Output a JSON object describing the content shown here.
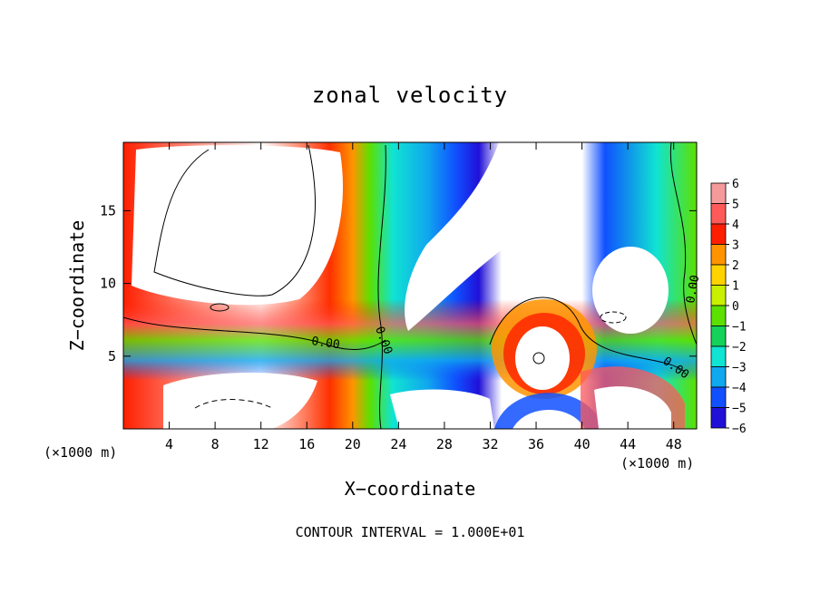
{
  "chart_data": {
    "type": "heatmap",
    "title": "zonal velocity",
    "xlabel": "X−coordinate",
    "ylabel": "Z−coordinate",
    "x_unit_left": "(×1000 m)",
    "x_unit_right": "(×1000 m)",
    "footer": "CONTOUR INTERVAL = 1.000E+01",
    "xlim": [
      0,
      50
    ],
    "ylim": [
      0,
      19.7
    ],
    "x_ticks": [
      4,
      8,
      12,
      16,
      20,
      24,
      28,
      32,
      36,
      40,
      44,
      48
    ],
    "x_tick_labels": [
      "4",
      "8",
      "12",
      "16",
      "20",
      "24",
      "28",
      "32",
      "36",
      "40",
      "44",
      "48"
    ],
    "y_ticks": [
      5,
      10,
      15
    ],
    "y_tick_labels": [
      "5",
      "10",
      "15"
    ],
    "colorbar": {
      "range": [
        -6,
        6
      ],
      "levels": [
        6,
        5,
        4,
        3,
        2,
        1,
        0,
        -1,
        -2,
        -3,
        -4,
        -5,
        -6
      ],
      "labels": [
        "6",
        "5",
        "4",
        "3",
        "2",
        "1",
        "0",
        "−1",
        "−2",
        "−3",
        "−4",
        "−5",
        "−6"
      ],
      "colors": [
        "#f49a9a",
        "#ff5a5a",
        "#ff1f00",
        "#ff9400",
        "#ffd200",
        "#c8f000",
        "#5ce000",
        "#14d25a",
        "#10e4d2",
        "#10a8ee",
        "#1050ff",
        "#2010d8",
        "#6810b0"
      ]
    },
    "contour_labels": [
      "0.00",
      "0.00",
      "0.00",
      "0.00"
    ],
    "grid": false
  }
}
